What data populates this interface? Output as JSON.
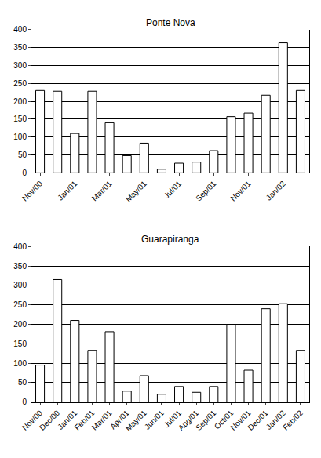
{
  "chart_data": [
    {
      "type": "bar",
      "title": "Ponte Nova",
      "categories": [
        "Nov/00",
        null,
        "Jan/01",
        null,
        "Mar/01",
        null,
        "May/01",
        null,
        "Jul/01",
        null,
        "Sep/01",
        null,
        "Nov/01",
        null,
        "Jan/02",
        null
      ],
      "values": [
        230,
        228,
        110,
        228,
        140,
        48,
        83,
        10,
        27,
        30,
        62,
        157,
        167,
        217,
        363,
        230
      ],
      "color": "#ffffff",
      "ylim": [
        0,
        400
      ],
      "yticks": [
        0,
        50,
        100,
        150,
        200,
        250,
        300,
        350,
        400
      ],
      "grid": true
    },
    {
      "type": "bar",
      "title": "Guarapiranga",
      "categories": [
        "Nov/00",
        "Dec/00",
        "Jan/01",
        "Feb/01",
        "Mar/01",
        "Apr/01",
        "May/01",
        "Jun/01",
        "Jul/01",
        "Aug/01",
        "Sep/01",
        "Oct/01",
        "Nov/01",
        "Dec/01",
        "Jan/02",
        "Feb/02"
      ],
      "values": [
        95,
        315,
        210,
        133,
        181,
        28,
        68,
        20,
        40,
        25,
        40,
        200,
        82,
        240,
        253,
        133
      ],
      "color": "#ffffff",
      "ylim": [
        0,
        400
      ],
      "yticks": [
        0,
        50,
        100,
        150,
        200,
        250,
        300,
        350,
        400
      ],
      "grid": true
    }
  ]
}
